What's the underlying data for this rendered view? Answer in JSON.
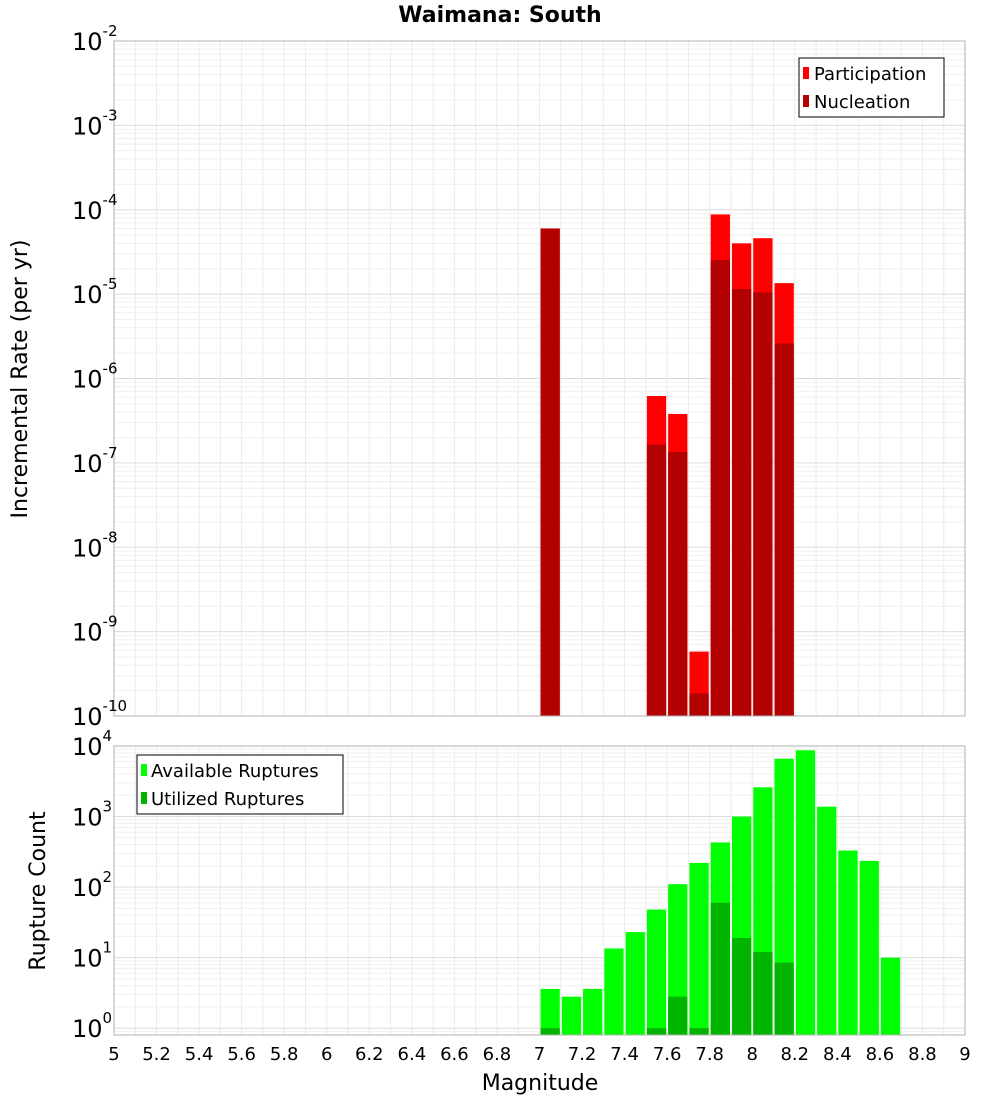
{
  "chart_data": [
    {
      "type": "bar",
      "title": "Waimana: South",
      "xlabel": "Magnitude",
      "ylabel": "Incremental Rate (per yr)",
      "yscale": "log",
      "xlim": [
        5,
        9
      ],
      "ylim": [
        1e-10,
        0.01
      ],
      "bin_width": 0.1,
      "yticks": [
        {
          "base": "10",
          "exp": "-2"
        },
        {
          "base": "10",
          "exp": "-3"
        },
        {
          "base": "10",
          "exp": "-4"
        },
        {
          "base": "10",
          "exp": "-5"
        },
        {
          "base": "10",
          "exp": "-6"
        },
        {
          "base": "10",
          "exp": "-7"
        },
        {
          "base": "10",
          "exp": "-8"
        },
        {
          "base": "10",
          "exp": "-9"
        },
        {
          "base": "10",
          "exp": "-10"
        }
      ],
      "legend_position": "top-right",
      "series": [
        {
          "name": "Participation",
          "color": "#ff0000",
          "x": [
            7.05,
            7.55,
            7.65,
            7.75,
            7.85,
            7.95,
            8.05,
            8.15
          ],
          "values": [
            6e-05,
            6.2e-07,
            3.8e-07,
            5.8e-10,
            8.8e-05,
            4e-05,
            4.6e-05,
            1.35e-05
          ]
        },
        {
          "name": "Nucleation",
          "color": "#b30000",
          "x": [
            7.05,
            7.55,
            7.65,
            7.75,
            7.85,
            7.95,
            8.05,
            8.15
          ],
          "values": [
            6e-05,
            1.65e-07,
            1.35e-07,
            1.85e-10,
            2.55e-05,
            1.15e-05,
            1.05e-05,
            2.6e-06
          ]
        }
      ]
    },
    {
      "type": "bar",
      "xlabel": "Magnitude",
      "ylabel": "Rupture Count",
      "yscale": "log",
      "xlim": [
        5,
        9
      ],
      "ylim": [
        0.8,
        10000
      ],
      "bin_width": 0.1,
      "yticks": [
        {
          "base": "10",
          "exp": "4"
        },
        {
          "base": "10",
          "exp": "3"
        },
        {
          "base": "10",
          "exp": "2"
        },
        {
          "base": "10",
          "exp": "1"
        },
        {
          "base": "10",
          "exp": "0"
        }
      ],
      "xticks": [
        "5",
        "5.2",
        "5.4",
        "5.6",
        "5.8",
        "6",
        "6.2",
        "6.4",
        "6.6",
        "6.8",
        "7",
        "7.2",
        "7.4",
        "7.6",
        "7.8",
        "8",
        "8.2",
        "8.4",
        "8.6",
        "8.8",
        "9"
      ],
      "legend_position": "top-left",
      "series": [
        {
          "name": "Available Ruptures",
          "color": "#00ff00",
          "x": [
            7.05,
            7.15,
            7.25,
            7.35,
            7.45,
            7.55,
            7.65,
            7.75,
            7.85,
            7.95,
            8.05,
            8.15,
            8.25,
            8.35,
            8.45,
            8.55,
            8.65
          ],
          "values": [
            3.6,
            2.8,
            3.6,
            13.5,
            23,
            48,
            110,
            220,
            430,
            1000,
            2600,
            6600,
            8700,
            1380,
            330,
            235,
            10
          ]
        },
        {
          "name": "Utilized Ruptures",
          "color": "#00b400",
          "x": [
            7.05,
            7.55,
            7.65,
            7.75,
            7.85,
            7.95,
            8.05,
            8.15
          ],
          "values": [
            1,
            1,
            2.8,
            1,
            60,
            19,
            12,
            8.5
          ]
        }
      ]
    }
  ]
}
